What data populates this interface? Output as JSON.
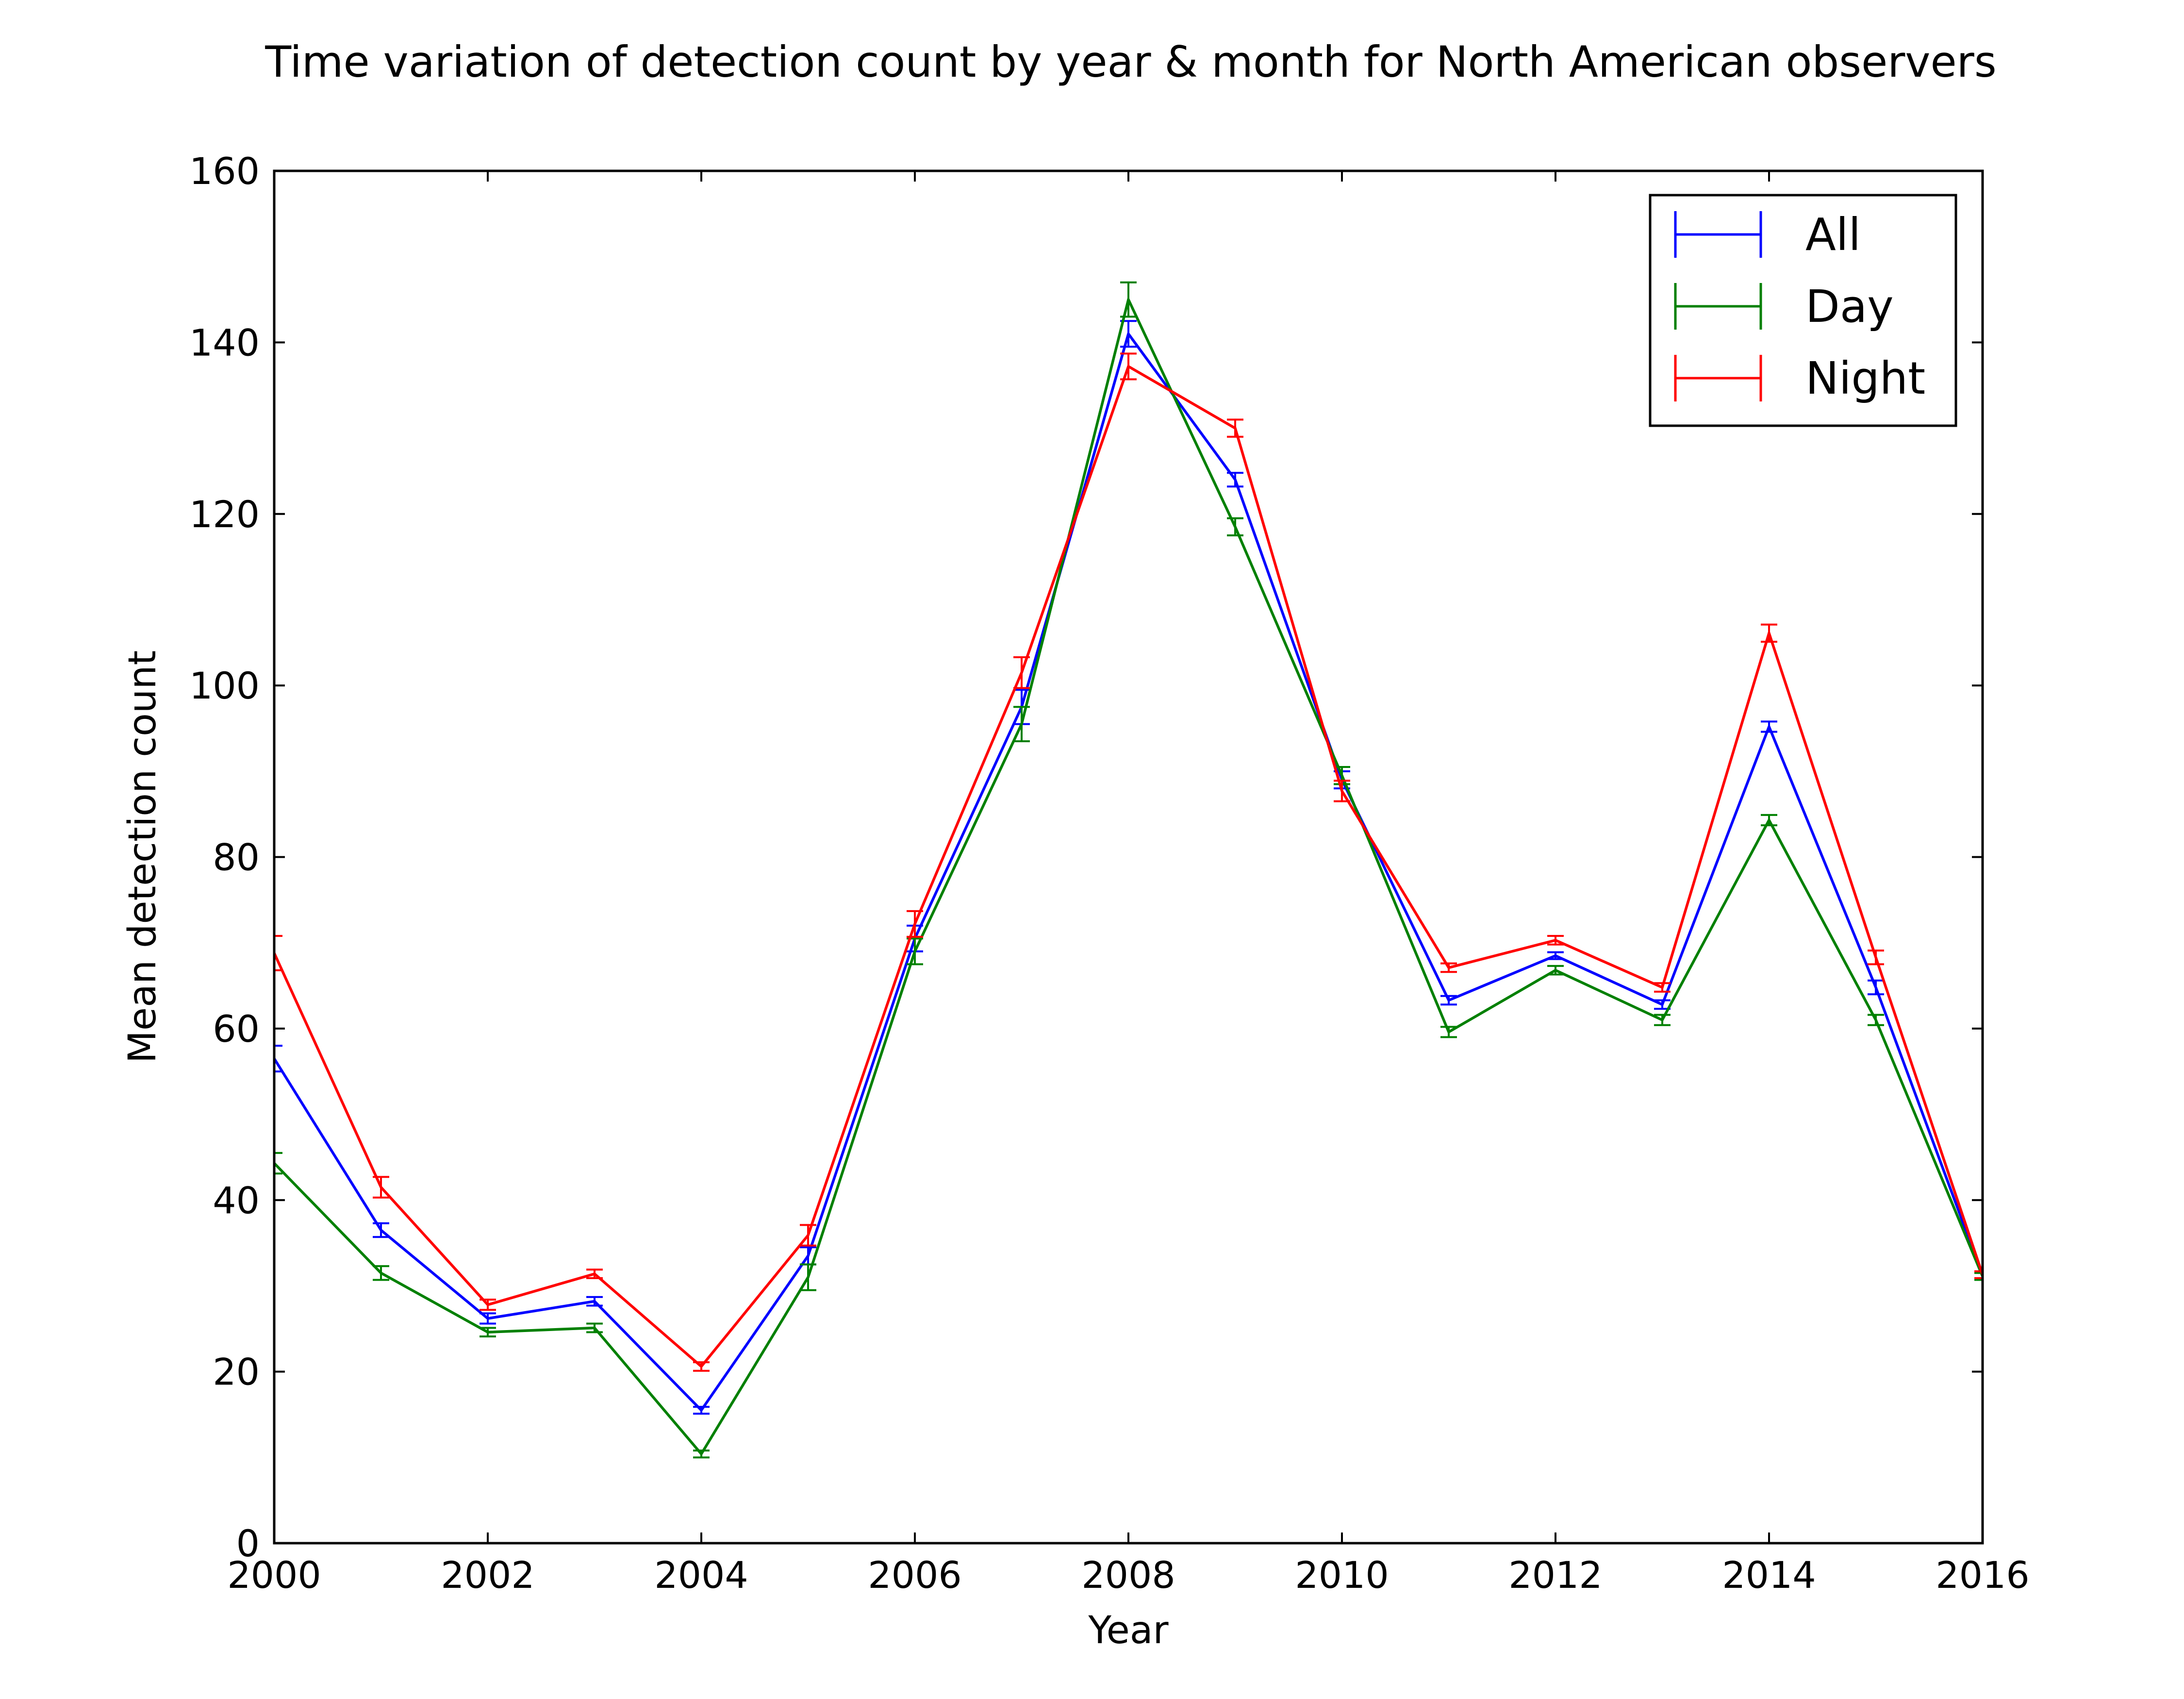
{
  "chart_data": {
    "type": "line",
    "title": "Time variation of detection count by year & month for North American observers",
    "xlabel": "Year",
    "ylabel": "Mean detection count",
    "xlim": [
      2000,
      2016
    ],
    "ylim": [
      0,
      160
    ],
    "xticks": [
      2000,
      2002,
      2004,
      2006,
      2008,
      2010,
      2012,
      2014,
      2016
    ],
    "yticks": [
      0,
      20,
      40,
      60,
      80,
      100,
      120,
      140,
      160
    ],
    "xtick_labels": [
      "2000",
      "2002",
      "2004",
      "2006",
      "2008",
      "2010",
      "2012",
      "2014",
      "2016"
    ],
    "ytick_labels": [
      "0",
      "20",
      "40",
      "60",
      "80",
      "100",
      "120",
      "140",
      "160"
    ],
    "grid": false,
    "legend_position": "top-right",
    "error_bars": true,
    "x": [
      2000,
      2001,
      2002,
      2003,
      2004,
      2005,
      2006,
      2007,
      2008,
      2009,
      2010,
      2011,
      2012,
      2013,
      2014,
      2015,
      2016
    ],
    "series": [
      {
        "name": "All",
        "color": "#0000ff",
        "values": [
          56.5,
          36.5,
          26.2,
          28.2,
          15.5,
          33.5,
          70.5,
          97.5,
          141,
          124,
          89,
          63.3,
          68.5,
          62.8,
          95.2,
          64.8,
          31.2
        ],
        "errors": [
          1.5,
          0.8,
          0.6,
          0.5,
          0.4,
          1.0,
          1.5,
          2.0,
          1.5,
          0.8,
          1.0,
          0.5,
          0.4,
          0.5,
          0.6,
          0.8,
          0.4
        ]
      },
      {
        "name": "Day",
        "color": "#008000",
        "values": [
          44.3,
          31.5,
          24.6,
          25.1,
          10.4,
          31.0,
          69.0,
          95.5,
          145,
          118.5,
          89.5,
          59.6,
          66.8,
          61.0,
          84.3,
          61.0,
          31.1
        ],
        "errors": [
          1.2,
          0.8,
          0.5,
          0.5,
          0.4,
          1.5,
          1.5,
          2.0,
          2.0,
          1.0,
          1.0,
          0.6,
          0.5,
          0.6,
          0.6,
          0.6,
          0.4
        ]
      },
      {
        "name": "Night",
        "color": "#ff0000",
        "values": [
          68.8,
          41.5,
          27.8,
          31.4,
          20.6,
          35.9,
          72.2,
          101.5,
          137.2,
          130.0,
          87.7,
          67.1,
          70.3,
          64.8,
          106.1,
          68.3,
          31.3
        ],
        "errors": [
          2.0,
          1.2,
          0.6,
          0.5,
          0.5,
          1.2,
          1.5,
          1.8,
          1.5,
          1.0,
          1.2,
          0.5,
          0.5,
          0.5,
          1.0,
          0.8,
          0.4
        ]
      }
    ]
  }
}
